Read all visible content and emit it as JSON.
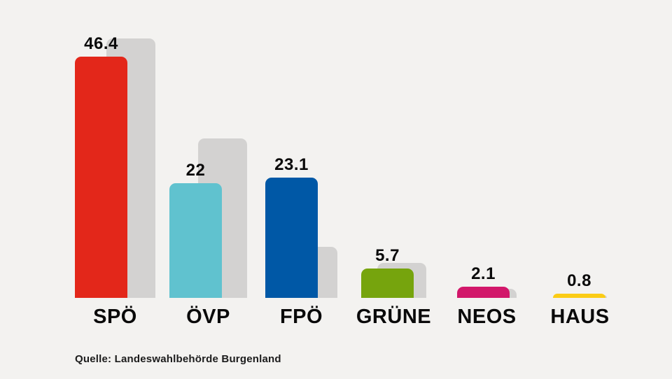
{
  "chart_data": {
    "type": "bar",
    "title": "",
    "categories": [
      "SPÖ",
      "ÖVP",
      "FPÖ",
      "GRÜNE",
      "NEOS",
      "HAUS"
    ],
    "series": [
      {
        "name": "result",
        "values": [
          46.4,
          22,
          23.1,
          5.7,
          2.1,
          0.8
        ],
        "value_labels": [
          "46.4",
          "22",
          "23.1",
          "5.7",
          "2.1",
          "0.8"
        ],
        "bar_colors": [
          "#e3271a",
          "#60c2cf",
          "#0058a6",
          "#76a40d",
          "#d2176a",
          "#fbcc15"
        ]
      },
      {
        "name": "previous-result-gray-shadow",
        "values": [
          49.9,
          30.6,
          9.8,
          6.7,
          1.7,
          0
        ],
        "bar_color": "#d3d2d1"
      }
    ],
    "xlabel": "",
    "ylabel": "",
    "ylim": [
      0,
      52
    ],
    "grid": false,
    "legend": false,
    "axes_visible": false,
    "background_color": "#f3f2f0",
    "text_color": "#0a0a0a"
  },
  "source": {
    "text": "Quelle: Landeswahlbehörde Burgenland"
  },
  "category_slugs": [
    "spoe",
    "oevp",
    "fpoe",
    "gruene",
    "neos",
    "haus"
  ]
}
